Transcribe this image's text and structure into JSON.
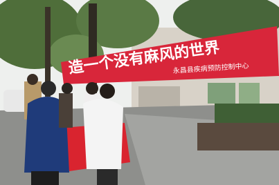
{
  "banner": {
    "slogan": "造一个没有麻风的世界",
    "organization": "永昌县疾病预防控制中心"
  }
}
